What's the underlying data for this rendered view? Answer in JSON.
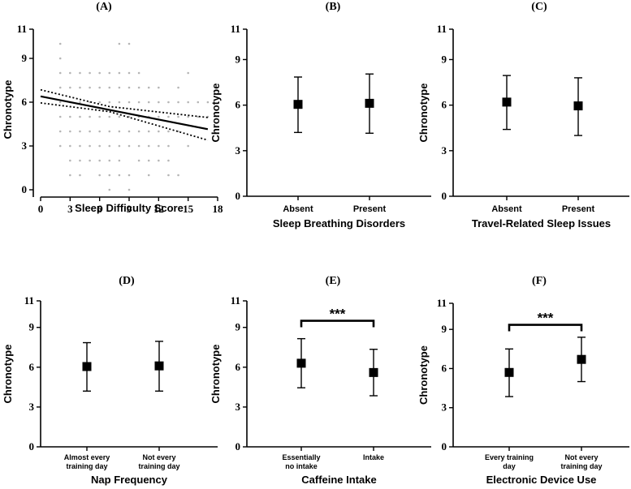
{
  "chart_data": [
    {
      "panel": "(A)",
      "type": "scatter",
      "xlabel": "Sleep Difficulty Score",
      "ylabel": "Chronotype",
      "xlim": [
        0,
        18
      ],
      "ylim": [
        0,
        11
      ],
      "xticks": [
        0,
        3,
        6,
        9,
        12,
        15,
        18
      ],
      "yticks": [
        0,
        3,
        6,
        9,
        11
      ],
      "points": [
        [
          2,
          10
        ],
        [
          2,
          9
        ],
        [
          2,
          8
        ],
        [
          2,
          7
        ],
        [
          2,
          6
        ],
        [
          2,
          5
        ],
        [
          2,
          4
        ],
        [
          2,
          3
        ],
        [
          3,
          8
        ],
        [
          3,
          7
        ],
        [
          3,
          6
        ],
        [
          3,
          5
        ],
        [
          3,
          4
        ],
        [
          3,
          3
        ],
        [
          3,
          2
        ],
        [
          3,
          1
        ],
        [
          4,
          8
        ],
        [
          4,
          7
        ],
        [
          4,
          6
        ],
        [
          4,
          5
        ],
        [
          4,
          4
        ],
        [
          4,
          3
        ],
        [
          4,
          2
        ],
        [
          4,
          1
        ],
        [
          5,
          8
        ],
        [
          5,
          7
        ],
        [
          5,
          6
        ],
        [
          5,
          5
        ],
        [
          5,
          4
        ],
        [
          5,
          3
        ],
        [
          5,
          2
        ],
        [
          6,
          8
        ],
        [
          6,
          7
        ],
        [
          6,
          6
        ],
        [
          6,
          5
        ],
        [
          6,
          4
        ],
        [
          6,
          3
        ],
        [
          6,
          2
        ],
        [
          6,
          1
        ],
        [
          7,
          8
        ],
        [
          7,
          7
        ],
        [
          7,
          6
        ],
        [
          7,
          5
        ],
        [
          7,
          4
        ],
        [
          7,
          3
        ],
        [
          7,
          2
        ],
        [
          7,
          1
        ],
        [
          7,
          0
        ],
        [
          8,
          10
        ],
        [
          8,
          8
        ],
        [
          8,
          7
        ],
        [
          8,
          6
        ],
        [
          8,
          5
        ],
        [
          8,
          4
        ],
        [
          8,
          3
        ],
        [
          8,
          2
        ],
        [
          8,
          1
        ],
        [
          9,
          10
        ],
        [
          9,
          8
        ],
        [
          9,
          7
        ],
        [
          9,
          6
        ],
        [
          9,
          5
        ],
        [
          9,
          4
        ],
        [
          9,
          3
        ],
        [
          9,
          1
        ],
        [
          9,
          0
        ],
        [
          10,
          8
        ],
        [
          10,
          7
        ],
        [
          10,
          6
        ],
        [
          10,
          5
        ],
        [
          10,
          4
        ],
        [
          10,
          3
        ],
        [
          10,
          2
        ],
        [
          11,
          7
        ],
        [
          11,
          6
        ],
        [
          11,
          5
        ],
        [
          11,
          4
        ],
        [
          11,
          3
        ],
        [
          11,
          2
        ],
        [
          11,
          1
        ],
        [
          12,
          7
        ],
        [
          12,
          6
        ],
        [
          12,
          5
        ],
        [
          12,
          4
        ],
        [
          12,
          3
        ],
        [
          12,
          2
        ],
        [
          13,
          6
        ],
        [
          13,
          5
        ],
        [
          13,
          4
        ],
        [
          13,
          3
        ],
        [
          13,
          2
        ],
        [
          13,
          1
        ],
        [
          14,
          7
        ],
        [
          14,
          6
        ],
        [
          14,
          5
        ],
        [
          14,
          4
        ],
        [
          14,
          1
        ],
        [
          15,
          8
        ],
        [
          15,
          6
        ],
        [
          15,
          5
        ],
        [
          15,
          3
        ],
        [
          16,
          6
        ],
        [
          16,
          5
        ],
        [
          17,
          6
        ],
        [
          17,
          5
        ]
      ],
      "regression": {
        "x": [
          0,
          17
        ],
        "y": [
          6.4,
          4.15
        ]
      },
      "ci_upper": {
        "x": [
          0,
          7,
          17
        ],
        "y": [
          6.85,
          5.7,
          4.95
        ]
      },
      "ci_lower": {
        "x": [
          0,
          7,
          17
        ],
        "y": [
          5.95,
          5.35,
          3.4
        ]
      }
    },
    {
      "panel": "(B)",
      "type": "errorbar",
      "xlabel": "Sleep Breathing Disorders",
      "ylabel": "Chronotype",
      "categories": [
        "Absent",
        "Present"
      ],
      "values": [
        6.05,
        6.12
      ],
      "lower": [
        4.2,
        4.15
      ],
      "upper": [
        7.85,
        8.05
      ],
      "ylim": [
        0,
        11
      ],
      "yticks": [
        0,
        3,
        6,
        9,
        11
      ]
    },
    {
      "panel": "(C)",
      "type": "errorbar",
      "xlabel": "Travel-Related Sleep Issues",
      "ylabel": "Chronotype",
      "categories": [
        "Absent",
        "Present"
      ],
      "values": [
        6.2,
        5.95
      ],
      "lower": [
        4.4,
        4.0
      ],
      "upper": [
        7.95,
        7.8
      ],
      "ylim": [
        0,
        11
      ],
      "yticks": [
        0,
        3,
        6,
        9,
        11
      ]
    },
    {
      "panel": "(D)",
      "type": "errorbar",
      "xlabel": "Nap Frequency",
      "ylabel": "Chronotype",
      "categories": [
        [
          "Almost every",
          "training day"
        ],
        [
          "Not every",
          "training day"
        ]
      ],
      "values": [
        6.05,
        6.1
      ],
      "lower": [
        4.2,
        4.2
      ],
      "upper": [
        7.85,
        7.95
      ],
      "ylim": [
        0,
        11
      ],
      "yticks": [
        0,
        3,
        6,
        9,
        11
      ]
    },
    {
      "panel": "(E)",
      "type": "errorbar",
      "xlabel": "Caffeine Intake",
      "ylabel": "Chronotype",
      "categories": [
        [
          "Essentially",
          "no intake"
        ],
        [
          "Intake"
        ]
      ],
      "values": [
        6.3,
        5.6
      ],
      "lower": [
        4.45,
        3.85
      ],
      "upper": [
        8.15,
        7.35
      ],
      "ylim": [
        0,
        11
      ],
      "yticks": [
        0,
        3,
        6,
        9,
        11
      ],
      "significance": "***",
      "bracket_y": 9.5
    },
    {
      "panel": "(F)",
      "type": "errorbar",
      "xlabel": "Electronic Device Use",
      "ylabel": "Chronotype",
      "categories": [
        [
          "Every training",
          "day"
        ],
        [
          "Not every",
          "training day"
        ]
      ],
      "values": [
        5.7,
        6.7
      ],
      "lower": [
        3.85,
        5.0
      ],
      "upper": [
        7.5,
        8.4
      ],
      "ylim": [
        0,
        11
      ],
      "yticks": [
        0,
        3,
        6,
        9,
        11
      ],
      "significance": "***",
      "bracket_y": 9.35
    }
  ]
}
